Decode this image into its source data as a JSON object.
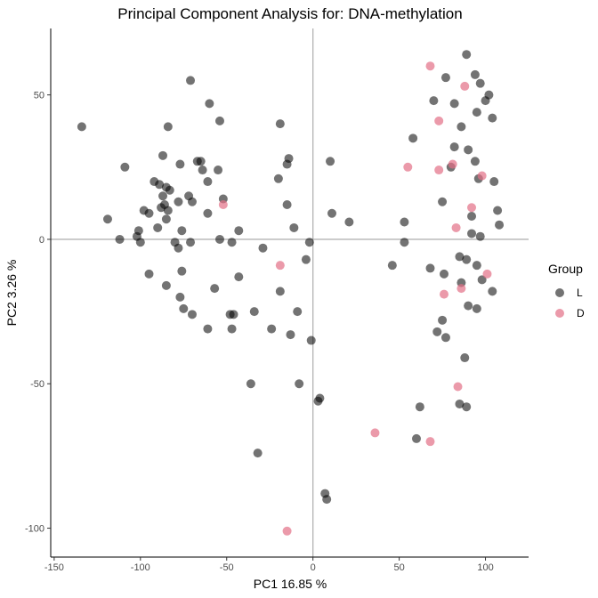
{
  "chart_data": {
    "type": "scatter",
    "title": "Principal Component Analysis for:  DNA-methylation",
    "xlabel": "PC1 16.85 %",
    "ylabel": "PC2 3.26 %",
    "xlim": [
      -152,
      125
    ],
    "ylim": [
      -110,
      73
    ],
    "xticks": [
      -150,
      -100,
      -50,
      0,
      50,
      100
    ],
    "yticks": [
      -100,
      -50,
      0,
      50
    ],
    "reference_lines": {
      "x": 0,
      "y": 0
    },
    "grid": false,
    "legend": {
      "title": "Group",
      "position": "right"
    },
    "series": [
      {
        "name": "L",
        "color": "#000000",
        "points": [
          [
            -134,
            39
          ],
          [
            -71,
            55
          ],
          [
            -60,
            47
          ],
          [
            -54,
            41
          ],
          [
            -84,
            39
          ],
          [
            -19,
            40
          ],
          [
            -109,
            25
          ],
          [
            -87,
            29
          ],
          [
            -77,
            26
          ],
          [
            -67,
            27
          ],
          [
            -65,
            27
          ],
          [
            -64,
            24
          ],
          [
            -55,
            24
          ],
          [
            -14,
            28
          ],
          [
            -15,
            26
          ],
          [
            -20,
            21
          ],
          [
            10,
            27
          ],
          [
            -92,
            20
          ],
          [
            -89,
            19
          ],
          [
            -85,
            18
          ],
          [
            -83,
            17
          ],
          [
            -72,
            15
          ],
          [
            -87,
            15
          ],
          [
            -86,
            12
          ],
          [
            -78,
            13
          ],
          [
            -61,
            20
          ],
          [
            -70,
            13
          ],
          [
            -52,
            14
          ],
          [
            -88,
            11
          ],
          [
            -84,
            10
          ],
          [
            -98,
            10
          ],
          [
            -95,
            9
          ],
          [
            -61,
            9
          ],
          [
            -15,
            12
          ],
          [
            11,
            9
          ],
          [
            -119,
            7
          ],
          [
            -85,
            7
          ],
          [
            -90,
            4
          ],
          [
            -101,
            3
          ],
          [
            -76,
            3
          ],
          [
            -11,
            4
          ],
          [
            21,
            6
          ],
          [
            -112,
            0
          ],
          [
            -102,
            1
          ],
          [
            -100,
            -1
          ],
          [
            -80,
            -1
          ],
          [
            -71,
            -1
          ],
          [
            -54,
            0
          ],
          [
            -47,
            -1
          ],
          [
            -43,
            3
          ],
          [
            -29,
            -3
          ],
          [
            -2,
            -1
          ],
          [
            -78,
            -3
          ],
          [
            -4,
            -7
          ],
          [
            -95,
            -12
          ],
          [
            -76,
            -11
          ],
          [
            -43,
            -13
          ],
          [
            -57,
            -17
          ],
          [
            -85,
            -16
          ],
          [
            -77,
            -20
          ],
          [
            -75,
            -24
          ],
          [
            -48,
            -26
          ],
          [
            -46,
            -26
          ],
          [
            -34,
            -25
          ],
          [
            -19,
            -18
          ],
          [
            -9,
            -25
          ],
          [
            -70,
            -26
          ],
          [
            -61,
            -31
          ],
          [
            -47,
            -31
          ],
          [
            -24,
            -31
          ],
          [
            -13,
            -33
          ],
          [
            -1,
            -35
          ],
          [
            -8,
            -50
          ],
          [
            -36,
            -50
          ],
          [
            3,
            -56
          ],
          [
            4,
            -55
          ],
          [
            -32,
            -74
          ],
          [
            7,
            -88
          ],
          [
            8,
            -90
          ],
          [
            89,
            64
          ],
          [
            77,
            56
          ],
          [
            94,
            57
          ],
          [
            70,
            48
          ],
          [
            82,
            47
          ],
          [
            97,
            54
          ],
          [
            102,
            50
          ],
          [
            100,
            48
          ],
          [
            95,
            44
          ],
          [
            104,
            42
          ],
          [
            86,
            39
          ],
          [
            58,
            35
          ],
          [
            82,
            32
          ],
          [
            90,
            31
          ],
          [
            94,
            27
          ],
          [
            80,
            25
          ],
          [
            96,
            21
          ],
          [
            105,
            20
          ],
          [
            75,
            13
          ],
          [
            92,
            8
          ],
          [
            107,
            10
          ],
          [
            108,
            5
          ],
          [
            53,
            6
          ],
          [
            92,
            2
          ],
          [
            97,
            1
          ],
          [
            53,
            -1
          ],
          [
            46,
            -9
          ],
          [
            68,
            -10
          ],
          [
            85,
            -6
          ],
          [
            89,
            -7
          ],
          [
            76,
            -12
          ],
          [
            95,
            -9
          ],
          [
            98,
            -14
          ],
          [
            86,
            -15
          ],
          [
            104,
            -18
          ],
          [
            90,
            -23
          ],
          [
            95,
            -24
          ],
          [
            75,
            -28
          ],
          [
            72,
            -32
          ],
          [
            77,
            -34
          ],
          [
            88,
            -41
          ],
          [
            62,
            -58
          ],
          [
            85,
            -57
          ],
          [
            89,
            -58
          ],
          [
            60,
            -69
          ]
        ]
      },
      {
        "name": "D",
        "color": "#e36f86",
        "points": [
          [
            68,
            60
          ],
          [
            88,
            53
          ],
          [
            73,
            41
          ],
          [
            55,
            25
          ],
          [
            73,
            24
          ],
          [
            81,
            26
          ],
          [
            98,
            22
          ],
          [
            92,
            11
          ],
          [
            -52,
            12
          ],
          [
            83,
            4
          ],
          [
            -19,
            -9
          ],
          [
            101,
            -12
          ],
          [
            86,
            -17
          ],
          [
            76,
            -19
          ],
          [
            84,
            -51
          ],
          [
            36,
            -67
          ],
          [
            68,
            -70
          ],
          [
            -15,
            -101
          ]
        ]
      }
    ]
  }
}
